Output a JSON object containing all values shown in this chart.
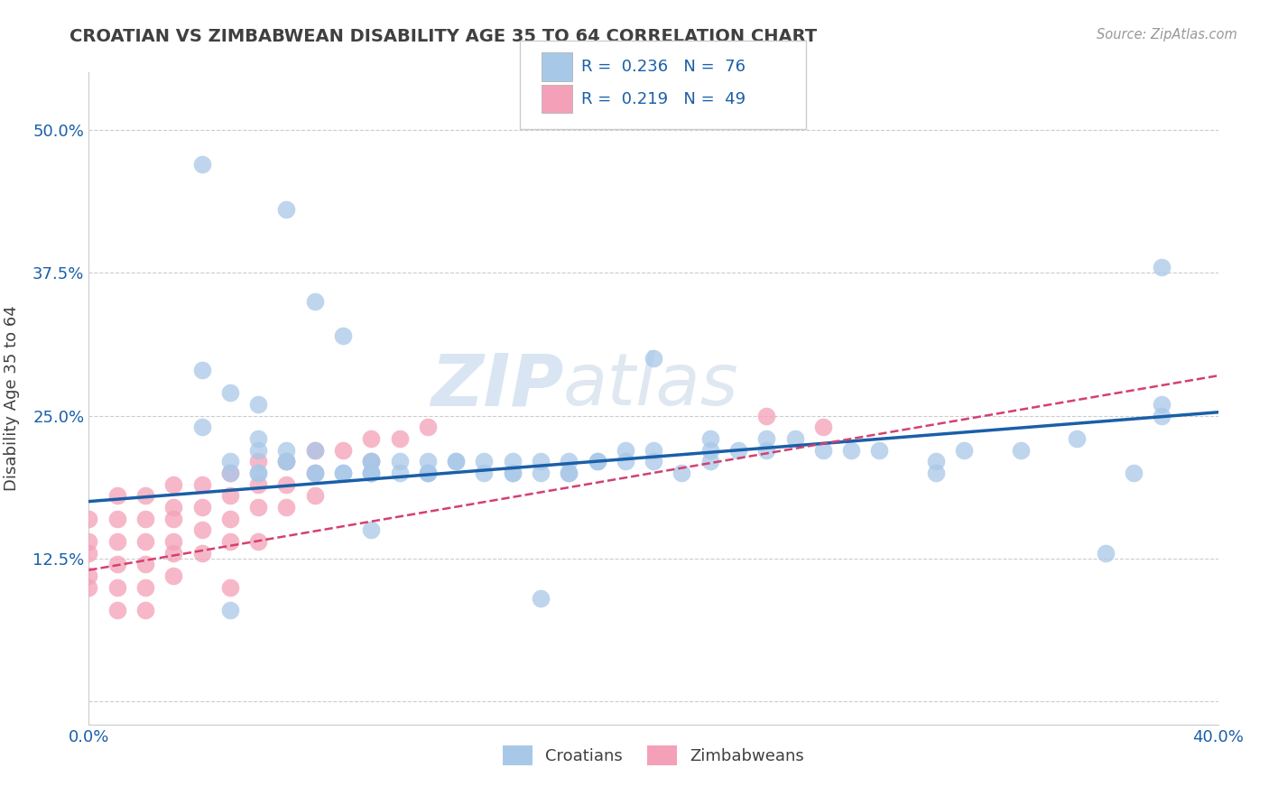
{
  "title": "CROATIAN VS ZIMBABWEAN DISABILITY AGE 35 TO 64 CORRELATION CHART",
  "source": "Source: ZipAtlas.com",
  "ylabel": "Disability Age 35 to 64",
  "xlim": [
    0.0,
    0.4
  ],
  "ylim": [
    -0.02,
    0.55
  ],
  "croatian_color": "#a8c8e8",
  "zimbabwean_color": "#f4a0b8",
  "trend_blue_color": "#1a5fa8",
  "trend_pink_color": "#d44070",
  "legend_R_croatian": "0.236",
  "legend_N_croatian": "76",
  "legend_R_zimbabwean": "0.219",
  "legend_N_zimbabwean": "49",
  "watermark_zip": "ZIP",
  "watermark_atlas": "atlas",
  "croatian_x": [
    0.04,
    0.07,
    0.08,
    0.09,
    0.04,
    0.05,
    0.06,
    0.04,
    0.06,
    0.06,
    0.05,
    0.05,
    0.06,
    0.06,
    0.07,
    0.07,
    0.07,
    0.08,
    0.08,
    0.08,
    0.09,
    0.09,
    0.1,
    0.1,
    0.1,
    0.1,
    0.1,
    0.11,
    0.11,
    0.12,
    0.12,
    0.12,
    0.12,
    0.13,
    0.13,
    0.14,
    0.14,
    0.15,
    0.15,
    0.15,
    0.16,
    0.16,
    0.17,
    0.17,
    0.17,
    0.18,
    0.18,
    0.19,
    0.19,
    0.2,
    0.2,
    0.21,
    0.22,
    0.22,
    0.22,
    0.23,
    0.24,
    0.24,
    0.25,
    0.26,
    0.27,
    0.28,
    0.3,
    0.3,
    0.31,
    0.33,
    0.35,
    0.36,
    0.37,
    0.38,
    0.38,
    0.38,
    0.2,
    0.1,
    0.05,
    0.16
  ],
  "croatian_y": [
    0.47,
    0.43,
    0.35,
    0.32,
    0.29,
    0.27,
    0.26,
    0.24,
    0.23,
    0.22,
    0.21,
    0.2,
    0.2,
    0.2,
    0.21,
    0.22,
    0.21,
    0.22,
    0.2,
    0.2,
    0.2,
    0.2,
    0.21,
    0.2,
    0.21,
    0.2,
    0.2,
    0.21,
    0.2,
    0.21,
    0.2,
    0.2,
    0.2,
    0.21,
    0.21,
    0.2,
    0.21,
    0.2,
    0.2,
    0.21,
    0.21,
    0.2,
    0.2,
    0.21,
    0.2,
    0.21,
    0.21,
    0.21,
    0.22,
    0.21,
    0.22,
    0.2,
    0.21,
    0.22,
    0.23,
    0.22,
    0.22,
    0.23,
    0.23,
    0.22,
    0.22,
    0.22,
    0.21,
    0.2,
    0.22,
    0.22,
    0.23,
    0.13,
    0.2,
    0.38,
    0.26,
    0.25,
    0.3,
    0.15,
    0.08,
    0.09
  ],
  "zimbabwean_x": [
    0.0,
    0.0,
    0.0,
    0.0,
    0.0,
    0.01,
    0.01,
    0.01,
    0.01,
    0.01,
    0.01,
    0.02,
    0.02,
    0.02,
    0.02,
    0.02,
    0.02,
    0.03,
    0.03,
    0.03,
    0.03,
    0.03,
    0.03,
    0.04,
    0.04,
    0.04,
    0.04,
    0.05,
    0.05,
    0.05,
    0.05,
    0.05,
    0.06,
    0.06,
    0.06,
    0.06,
    0.07,
    0.07,
    0.07,
    0.08,
    0.08,
    0.08,
    0.09,
    0.1,
    0.1,
    0.11,
    0.12,
    0.24,
    0.26
  ],
  "zimbabwean_y": [
    0.16,
    0.14,
    0.13,
    0.11,
    0.1,
    0.18,
    0.16,
    0.14,
    0.12,
    0.1,
    0.08,
    0.18,
    0.16,
    0.14,
    0.12,
    0.1,
    0.08,
    0.19,
    0.17,
    0.16,
    0.14,
    0.13,
    0.11,
    0.19,
    0.17,
    0.15,
    0.13,
    0.2,
    0.18,
    0.16,
    0.14,
    0.1,
    0.21,
    0.19,
    0.17,
    0.14,
    0.21,
    0.19,
    0.17,
    0.22,
    0.2,
    0.18,
    0.22,
    0.23,
    0.21,
    0.23,
    0.24,
    0.25,
    0.24
  ],
  "grid_color": "#cccccc",
  "background_color": "#ffffff",
  "text_color_blue": "#1a5fa8",
  "text_color_title": "#404040",
  "trend_blue_x0": 0.0,
  "trend_blue_y0": 0.175,
  "trend_blue_x1": 0.4,
  "trend_blue_y1": 0.253,
  "trend_pink_x0": 0.0,
  "trend_pink_y0": 0.115,
  "trend_pink_x1": 0.4,
  "trend_pink_y1": 0.285
}
